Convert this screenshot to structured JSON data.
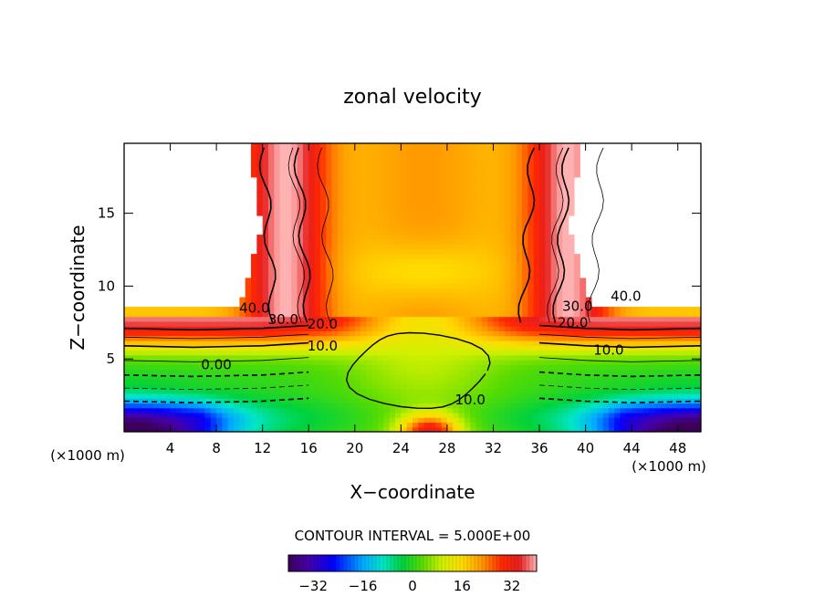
{
  "chart_data": {
    "type": "contour",
    "title": "zonal velocity",
    "xlabel": "X−coordinate",
    "ylabel": "Z−coordinate",
    "x_unit_left": "(×1000 m)",
    "x_unit_right": "(×1000 m)",
    "xlim": [
      0,
      50
    ],
    "ylim": [
      0,
      19.8
    ],
    "x_ticks": [
      4,
      8,
      12,
      16,
      20,
      24,
      28,
      32,
      36,
      40,
      44,
      48
    ],
    "y_ticks": [
      5,
      10,
      15
    ],
    "contour_interval_text": "CONTOUR INTERVAL = 5.000E+00",
    "contour_labels": [
      {
        "text": "40.0",
        "x": 11.3,
        "y": 8.5
      },
      {
        "text": "30.0",
        "x": 13.8,
        "y": 7.7
      },
      {
        "text": "20.0",
        "x": 17.2,
        "y": 7.4
      },
      {
        "text": "10.0",
        "x": 17.2,
        "y": 5.9
      },
      {
        "text": "0.00",
        "x": 8.0,
        "y": 4.6
      },
      {
        "text": "10.0",
        "x": 30.0,
        "y": 2.2
      },
      {
        "text": "30.0",
        "x": 39.3,
        "y": 8.6
      },
      {
        "text": "40.0",
        "x": 43.5,
        "y": 9.3
      },
      {
        "text": "20.0",
        "x": 38.9,
        "y": 7.5
      },
      {
        "text": "10.0",
        "x": 42.0,
        "y": 5.6
      }
    ],
    "colorbar": {
      "min": -40,
      "max": 40,
      "ticks": [
        -32,
        -16,
        0,
        16,
        32
      ],
      "tick_labels": [
        "−32",
        "−16",
        "0",
        "16",
        "32"
      ]
    },
    "colors": {
      "frame": "#000000",
      "dashed_contour": "#000000",
      "background": "#ffffff"
    }
  }
}
